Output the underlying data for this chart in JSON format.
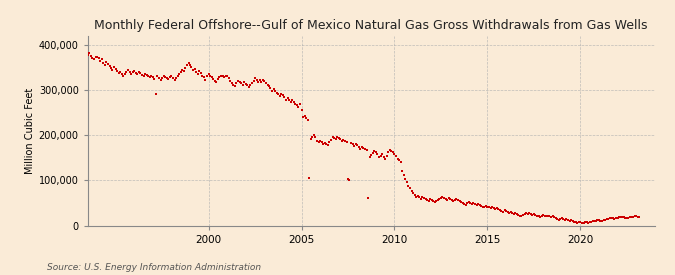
{
  "title": "Monthly Federal Offshore--Gulf of Mexico Natural Gas Gross Withdrawals from Gas Wells",
  "ylabel": "Million Cubic Feet",
  "source": "Source: U.S. Energy Information Administration",
  "background_color": "#faebd7",
  "plot_background_color": "#faebd7",
  "dot_color": "#cc0000",
  "grid_color": "#b0b0b0",
  "ylim": [
    0,
    420000
  ],
  "yticks": [
    0,
    100000,
    200000,
    300000,
    400000
  ],
  "ytick_labels": [
    "0",
    "100,000",
    "200,000",
    "300,000",
    "400,000"
  ],
  "xtick_years": [
    2000,
    2005,
    2010,
    2015,
    2020
  ],
  "dot_size": 2.5,
  "data": [
    [
      1993.0,
      375000
    ],
    [
      1993.08,
      372000
    ],
    [
      1993.17,
      368000
    ],
    [
      1993.25,
      370000
    ],
    [
      1993.33,
      365000
    ],
    [
      1993.42,
      372000
    ],
    [
      1993.5,
      378000
    ],
    [
      1993.58,
      382000
    ],
    [
      1993.67,
      376000
    ],
    [
      1993.75,
      370000
    ],
    [
      1993.83,
      368000
    ],
    [
      1993.92,
      374000
    ],
    [
      1994.0,
      372000
    ],
    [
      1994.08,
      370000
    ],
    [
      1994.17,
      365000
    ],
    [
      1994.25,
      368000
    ],
    [
      1994.33,
      360000
    ],
    [
      1994.42,
      355000
    ],
    [
      1994.5,
      362000
    ],
    [
      1994.58,
      358000
    ],
    [
      1994.67,
      352000
    ],
    [
      1994.75,
      348000
    ],
    [
      1994.83,
      344000
    ],
    [
      1994.92,
      350000
    ],
    [
      1995.0,
      346000
    ],
    [
      1995.08,
      342000
    ],
    [
      1995.17,
      338000
    ],
    [
      1995.25,
      340000
    ],
    [
      1995.33,
      336000
    ],
    [
      1995.42,
      330000
    ],
    [
      1995.5,
      336000
    ],
    [
      1995.58,
      340000
    ],
    [
      1995.67,
      344000
    ],
    [
      1995.75,
      340000
    ],
    [
      1995.83,
      336000
    ],
    [
      1995.92,
      340000
    ],
    [
      1996.0,
      342000
    ],
    [
      1996.08,
      338000
    ],
    [
      1996.17,
      335000
    ],
    [
      1996.25,
      340000
    ],
    [
      1996.33,
      338000
    ],
    [
      1996.42,
      334000
    ],
    [
      1996.5,
      330000
    ],
    [
      1996.58,
      336000
    ],
    [
      1996.67,
      333000
    ],
    [
      1996.75,
      330000
    ],
    [
      1996.83,
      328000
    ],
    [
      1996.92,
      332000
    ],
    [
      1997.0,
      328000
    ],
    [
      1997.08,
      324000
    ],
    [
      1997.17,
      292000
    ],
    [
      1997.25,
      330000
    ],
    [
      1997.33,
      326000
    ],
    [
      1997.42,
      322000
    ],
    [
      1997.5,
      326000
    ],
    [
      1997.58,
      330000
    ],
    [
      1997.67,
      328000
    ],
    [
      1997.75,
      326000
    ],
    [
      1997.83,
      324000
    ],
    [
      1997.92,
      328000
    ],
    [
      1998.0,
      330000
    ],
    [
      1998.08,
      326000
    ],
    [
      1998.17,
      322000
    ],
    [
      1998.25,
      326000
    ],
    [
      1998.33,
      330000
    ],
    [
      1998.42,
      336000
    ],
    [
      1998.5,
      340000
    ],
    [
      1998.58,
      344000
    ],
    [
      1998.67,
      342000
    ],
    [
      1998.75,
      348000
    ],
    [
      1998.83,
      356000
    ],
    [
      1998.92,
      360000
    ],
    [
      1999.0,
      356000
    ],
    [
      1999.08,
      350000
    ],
    [
      1999.17,
      344000
    ],
    [
      1999.25,
      346000
    ],
    [
      1999.33,
      340000
    ],
    [
      1999.42,
      336000
    ],
    [
      1999.5,
      342000
    ],
    [
      1999.58,
      338000
    ],
    [
      1999.67,
      332000
    ],
    [
      1999.75,
      328000
    ],
    [
      1999.83,
      322000
    ],
    [
      1999.92,
      330000
    ],
    [
      2000.0,
      336000
    ],
    [
      2000.08,
      330000
    ],
    [
      2000.17,
      328000
    ],
    [
      2000.25,
      324000
    ],
    [
      2000.33,
      320000
    ],
    [
      2000.42,
      318000
    ],
    [
      2000.5,
      324000
    ],
    [
      2000.58,
      328000
    ],
    [
      2000.67,
      332000
    ],
    [
      2000.75,
      330000
    ],
    [
      2000.83,
      328000
    ],
    [
      2000.92,
      332000
    ],
    [
      2001.0,
      330000
    ],
    [
      2001.08,
      326000
    ],
    [
      2001.17,
      320000
    ],
    [
      2001.25,
      316000
    ],
    [
      2001.33,
      312000
    ],
    [
      2001.42,
      308000
    ],
    [
      2001.5,
      316000
    ],
    [
      2001.58,
      320000
    ],
    [
      2001.67,
      318000
    ],
    [
      2001.75,
      316000
    ],
    [
      2001.83,
      312000
    ],
    [
      2001.92,
      318000
    ],
    [
      2002.0,
      314000
    ],
    [
      2002.08,
      310000
    ],
    [
      2002.17,
      306000
    ],
    [
      2002.25,
      310000
    ],
    [
      2002.33,
      316000
    ],
    [
      2002.42,
      320000
    ],
    [
      2002.5,
      326000
    ],
    [
      2002.58,
      322000
    ],
    [
      2002.67,
      318000
    ],
    [
      2002.75,
      322000
    ],
    [
      2002.83,
      318000
    ],
    [
      2002.92,
      322000
    ],
    [
      2003.0,
      320000
    ],
    [
      2003.08,
      316000
    ],
    [
      2003.17,
      310000
    ],
    [
      2003.25,
      308000
    ],
    [
      2003.33,
      304000
    ],
    [
      2003.42,
      298000
    ],
    [
      2003.5,
      302000
    ],
    [
      2003.58,
      298000
    ],
    [
      2003.67,
      294000
    ],
    [
      2003.75,
      290000
    ],
    [
      2003.83,
      286000
    ],
    [
      2003.92,
      292000
    ],
    [
      2004.0,
      288000
    ],
    [
      2004.08,
      284000
    ],
    [
      2004.17,
      278000
    ],
    [
      2004.25,
      282000
    ],
    [
      2004.33,
      278000
    ],
    [
      2004.42,
      274000
    ],
    [
      2004.5,
      278000
    ],
    [
      2004.58,
      274000
    ],
    [
      2004.67,
      270000
    ],
    [
      2004.75,
      266000
    ],
    [
      2004.83,
      262000
    ],
    [
      2004.92,
      268000
    ],
    [
      2005.0,
      256000
    ],
    [
      2005.08,
      240000
    ],
    [
      2005.17,
      242000
    ],
    [
      2005.25,
      238000
    ],
    [
      2005.33,
      234000
    ],
    [
      2005.42,
      106000
    ],
    [
      2005.5,
      192000
    ],
    [
      2005.58,
      196000
    ],
    [
      2005.67,
      200000
    ],
    [
      2005.75,
      196000
    ],
    [
      2005.83,
      188000
    ],
    [
      2005.92,
      184000
    ],
    [
      2006.0,
      186000
    ],
    [
      2006.08,
      184000
    ],
    [
      2006.17,
      180000
    ],
    [
      2006.25,
      182000
    ],
    [
      2006.33,
      180000
    ],
    [
      2006.42,
      178000
    ],
    [
      2006.5,
      184000
    ],
    [
      2006.58,
      190000
    ],
    [
      2006.67,
      196000
    ],
    [
      2006.75,
      194000
    ],
    [
      2006.83,
      192000
    ],
    [
      2006.92,
      196000
    ],
    [
      2007.0,
      194000
    ],
    [
      2007.08,
      192000
    ],
    [
      2007.17,
      188000
    ],
    [
      2007.25,
      190000
    ],
    [
      2007.33,
      188000
    ],
    [
      2007.42,
      184000
    ],
    [
      2007.5,
      104000
    ],
    [
      2007.58,
      100000
    ],
    [
      2007.67,
      182000
    ],
    [
      2007.75,
      180000
    ],
    [
      2007.83,
      176000
    ],
    [
      2007.92,
      180000
    ],
    [
      2008.0,
      178000
    ],
    [
      2008.08,
      174000
    ],
    [
      2008.17,
      170000
    ],
    [
      2008.25,
      174000
    ],
    [
      2008.33,
      172000
    ],
    [
      2008.42,
      170000
    ],
    [
      2008.5,
      168000
    ],
    [
      2008.58,
      60000
    ],
    [
      2008.67,
      152000
    ],
    [
      2008.75,
      156000
    ],
    [
      2008.83,
      160000
    ],
    [
      2008.92,
      164000
    ],
    [
      2009.0,
      162000
    ],
    [
      2009.08,
      158000
    ],
    [
      2009.17,
      152000
    ],
    [
      2009.25,
      154000
    ],
    [
      2009.33,
      158000
    ],
    [
      2009.42,
      152000
    ],
    [
      2009.5,
      148000
    ],
    [
      2009.58,
      154000
    ],
    [
      2009.67,
      162000
    ],
    [
      2009.75,
      168000
    ],
    [
      2009.83,
      166000
    ],
    [
      2009.92,
      162000
    ],
    [
      2010.0,
      158000
    ],
    [
      2010.08,
      154000
    ],
    [
      2010.17,
      148000
    ],
    [
      2010.25,
      144000
    ],
    [
      2010.33,
      140000
    ],
    [
      2010.42,
      120000
    ],
    [
      2010.5,
      112000
    ],
    [
      2010.58,
      104000
    ],
    [
      2010.67,
      96000
    ],
    [
      2010.75,
      88000
    ],
    [
      2010.83,
      82000
    ],
    [
      2010.92,
      76000
    ],
    [
      2011.0,
      72000
    ],
    [
      2011.08,
      68000
    ],
    [
      2011.17,
      64000
    ],
    [
      2011.25,
      66000
    ],
    [
      2011.33,
      62000
    ],
    [
      2011.42,
      58000
    ],
    [
      2011.5,
      62000
    ],
    [
      2011.58,
      60000
    ],
    [
      2011.67,
      58000
    ],
    [
      2011.75,
      56000
    ],
    [
      2011.83,
      54000
    ],
    [
      2011.92,
      58000
    ],
    [
      2012.0,
      56000
    ],
    [
      2012.08,
      54000
    ],
    [
      2012.17,
      52000
    ],
    [
      2012.25,
      54000
    ],
    [
      2012.33,
      56000
    ],
    [
      2012.42,
      58000
    ],
    [
      2012.5,
      60000
    ],
    [
      2012.58,
      62000
    ],
    [
      2012.67,
      60000
    ],
    [
      2012.75,
      58000
    ],
    [
      2012.83,
      56000
    ],
    [
      2012.92,
      60000
    ],
    [
      2013.0,
      58000
    ],
    [
      2013.08,
      56000
    ],
    [
      2013.17,
      54000
    ],
    [
      2013.25,
      56000
    ],
    [
      2013.33,
      58000
    ],
    [
      2013.42,
      56000
    ],
    [
      2013.5,
      54000
    ],
    [
      2013.58,
      52000
    ],
    [
      2013.67,
      50000
    ],
    [
      2013.75,
      48000
    ],
    [
      2013.83,
      46000
    ],
    [
      2013.92,
      50000
    ],
    [
      2014.0,
      52000
    ],
    [
      2014.08,
      50000
    ],
    [
      2014.17,
      48000
    ],
    [
      2014.25,
      50000
    ],
    [
      2014.33,
      48000
    ],
    [
      2014.42,
      46000
    ],
    [
      2014.5,
      48000
    ],
    [
      2014.58,
      46000
    ],
    [
      2014.67,
      44000
    ],
    [
      2014.75,
      42000
    ],
    [
      2014.83,
      40000
    ],
    [
      2014.92,
      44000
    ],
    [
      2015.0,
      42000
    ],
    [
      2015.08,
      40000
    ],
    [
      2015.17,
      38000
    ],
    [
      2015.25,
      40000
    ],
    [
      2015.33,
      38000
    ],
    [
      2015.42,
      36000
    ],
    [
      2015.5,
      38000
    ],
    [
      2015.58,
      36000
    ],
    [
      2015.67,
      34000
    ],
    [
      2015.75,
      32000
    ],
    [
      2015.83,
      30000
    ],
    [
      2015.92,
      34000
    ],
    [
      2016.0,
      32000
    ],
    [
      2016.08,
      30000
    ],
    [
      2016.17,
      28000
    ],
    [
      2016.25,
      30000
    ],
    [
      2016.33,
      28000
    ],
    [
      2016.42,
      26000
    ],
    [
      2016.5,
      28000
    ],
    [
      2016.58,
      26000
    ],
    [
      2016.67,
      24000
    ],
    [
      2016.75,
      22000
    ],
    [
      2016.83,
      20000
    ],
    [
      2016.92,
      24000
    ],
    [
      2017.0,
      26000
    ],
    [
      2017.08,
      28000
    ],
    [
      2017.17,
      26000
    ],
    [
      2017.25,
      28000
    ],
    [
      2017.33,
      26000
    ],
    [
      2017.42,
      24000
    ],
    [
      2017.5,
      26000
    ],
    [
      2017.58,
      24000
    ],
    [
      2017.67,
      22000
    ],
    [
      2017.75,
      20000
    ],
    [
      2017.83,
      18000
    ],
    [
      2017.92,
      22000
    ],
    [
      2018.0,
      24000
    ],
    [
      2018.08,
      22000
    ],
    [
      2018.17,
      20000
    ],
    [
      2018.25,
      22000
    ],
    [
      2018.33,
      20000
    ],
    [
      2018.42,
      18000
    ],
    [
      2018.5,
      20000
    ],
    [
      2018.58,
      18000
    ],
    [
      2018.67,
      16000
    ],
    [
      2018.75,
      14000
    ],
    [
      2018.83,
      12000
    ],
    [
      2018.92,
      14000
    ],
    [
      2019.0,
      16000
    ],
    [
      2019.08,
      14000
    ],
    [
      2019.17,
      12000
    ],
    [
      2019.25,
      14000
    ],
    [
      2019.33,
      12000
    ],
    [
      2019.42,
      10000
    ],
    [
      2019.5,
      12000
    ],
    [
      2019.58,
      10000
    ],
    [
      2019.67,
      8000
    ],
    [
      2019.75,
      8000
    ],
    [
      2019.83,
      6000
    ],
    [
      2019.92,
      8000
    ],
    [
      2020.0,
      8000
    ],
    [
      2020.08,
      6000
    ],
    [
      2020.17,
      6000
    ],
    [
      2020.25,
      8000
    ],
    [
      2020.33,
      8000
    ],
    [
      2020.42,
      6000
    ],
    [
      2020.5,
      8000
    ],
    [
      2020.58,
      8000
    ],
    [
      2020.67,
      10000
    ],
    [
      2020.75,
      10000
    ],
    [
      2020.83,
      10000
    ],
    [
      2020.92,
      12000
    ],
    [
      2021.0,
      12000
    ],
    [
      2021.08,
      10000
    ],
    [
      2021.17,
      10000
    ],
    [
      2021.25,
      12000
    ],
    [
      2021.33,
      12000
    ],
    [
      2021.42,
      14000
    ],
    [
      2021.5,
      14000
    ],
    [
      2021.58,
      16000
    ],
    [
      2021.67,
      16000
    ],
    [
      2021.75,
      16000
    ],
    [
      2021.83,
      14000
    ],
    [
      2021.92,
      16000
    ],
    [
      2022.0,
      16000
    ],
    [
      2022.08,
      18000
    ],
    [
      2022.17,
      18000
    ],
    [
      2022.25,
      18000
    ],
    [
      2022.33,
      18000
    ],
    [
      2022.42,
      16000
    ],
    [
      2022.5,
      16000
    ],
    [
      2022.58,
      16000
    ],
    [
      2022.67,
      18000
    ],
    [
      2022.75,
      18000
    ],
    [
      2022.83,
      18000
    ],
    [
      2022.92,
      20000
    ],
    [
      2023.0,
      20000
    ],
    [
      2023.08,
      18000
    ],
    [
      2023.17,
      18000
    ]
  ]
}
